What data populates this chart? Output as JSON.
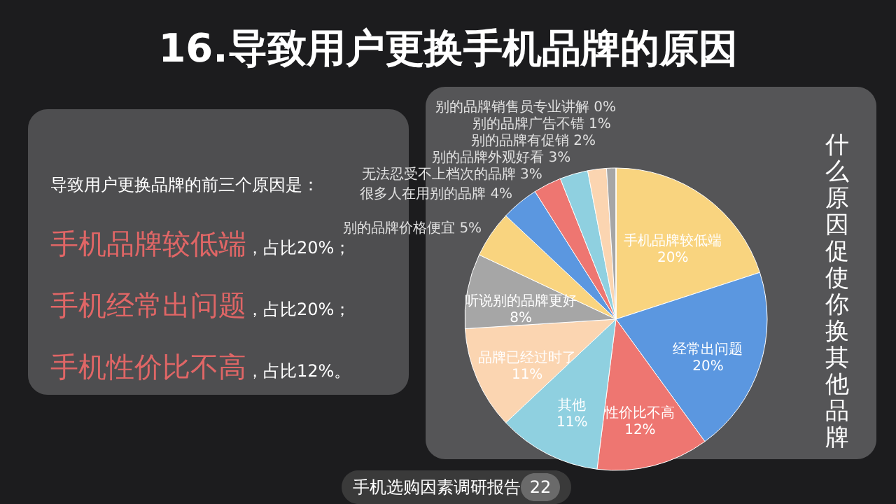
{
  "chart_data": {
    "type": "pie",
    "title": "16.导致用户更换手机品牌的原因",
    "categories": [
      "手机品牌较低端",
      "经常出问题",
      "性价比不高",
      "其他",
      "品牌已经过时了",
      "听说别的品牌更好",
      "别的品牌价格便宜",
      "很多人在用别的品牌",
      "无法忍受不上档次的品牌",
      "别的品牌外观好看",
      "别的品牌有促销",
      "别的品牌广告不错",
      "别的品牌销售员专业讲解"
    ],
    "values": [
      20,
      20,
      12,
      11,
      11,
      8,
      5,
      4,
      3,
      3,
      2,
      1,
      0
    ],
    "colors": [
      "#f9d47f",
      "#5b97e0",
      "#ee7671",
      "#8fd0e0",
      "#fbd5b1",
      "#a6a6a6",
      "#f9d47f",
      "#5b97e0",
      "#ee7671",
      "#8fd0e0",
      "#fbd5b1",
      "#a6a6a6",
      "#9b59d0"
    ],
    "value_labels": [
      "20%",
      "20%",
      "12%",
      "11%",
      "11%",
      "8%",
      "5%",
      "4%",
      "3%",
      "3%",
      "2%",
      "1%",
      "0%"
    ],
    "annotations": [
      "导致用户更换品牌的前三个原因是：",
      "手机品牌较低端",
      "，占比20%；",
      "手机经常出问题",
      "，占比20%；",
      "手机性价比不高",
      "，占比12%。",
      "什么原因促使你换其他品牌",
      "手机选购因素调研报告",
      "22"
    ]
  }
}
